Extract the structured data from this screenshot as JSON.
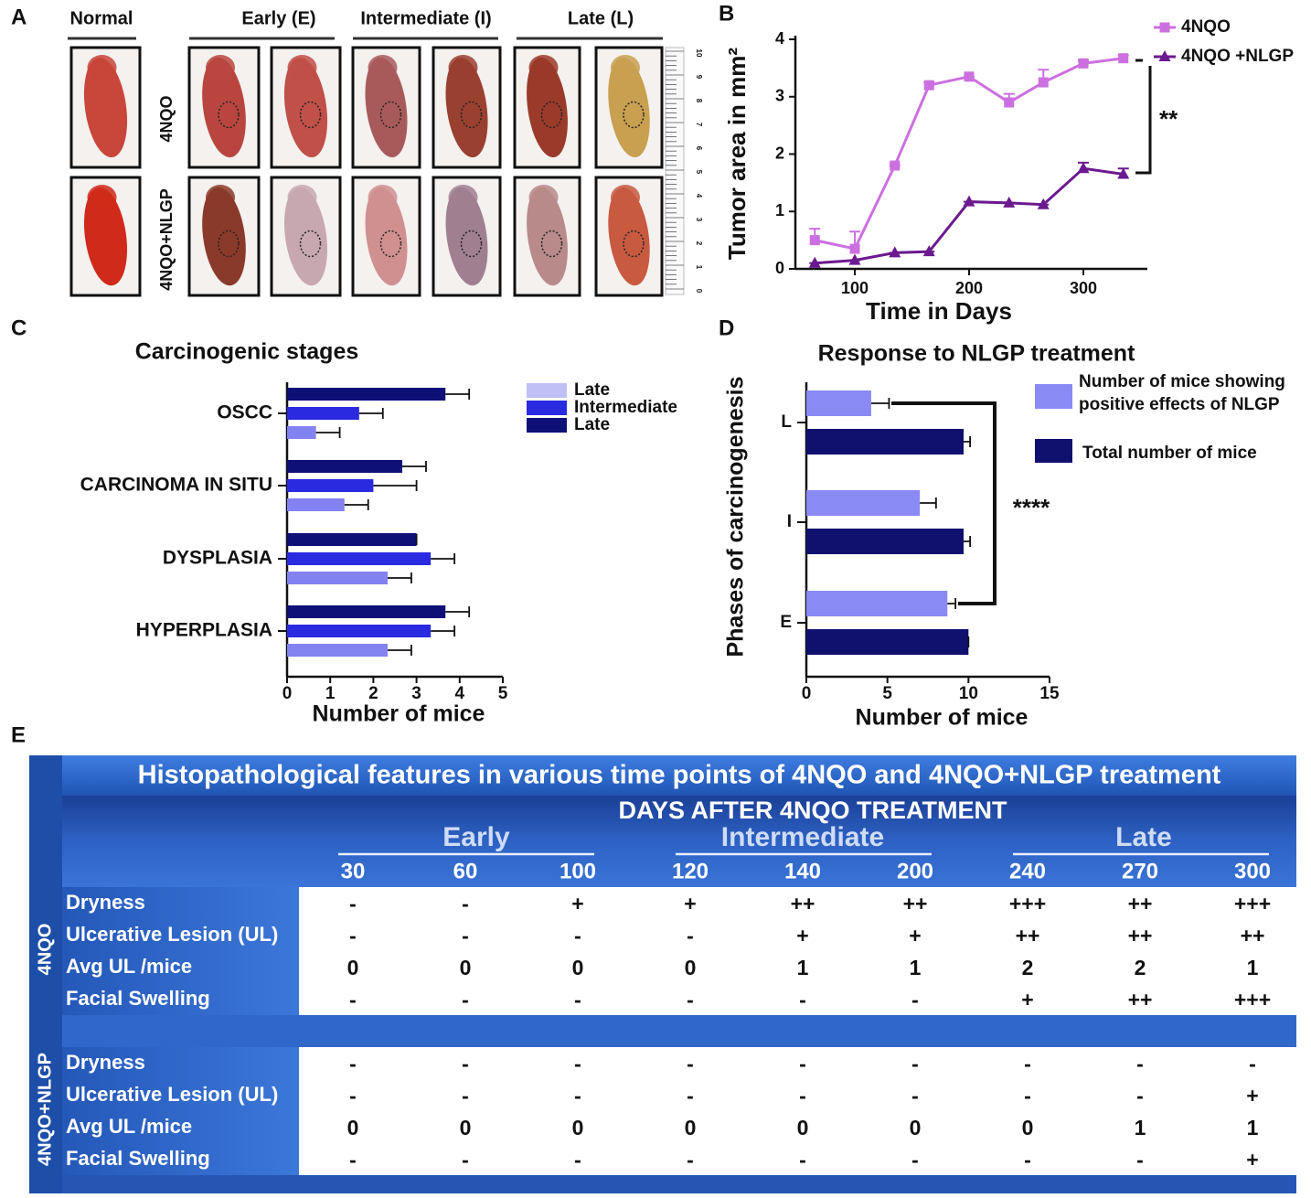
{
  "panel_labels": [
    "A",
    "B",
    "C",
    "D",
    "E"
  ],
  "photos": {
    "column_headers": [
      "Normal",
      "Early (E)",
      "Intermediate (I)",
      "Late (L)"
    ],
    "row_labels": [
      "4NQO",
      "4NQO+NLGP"
    ],
    "ruler_labels": [
      10,
      9,
      8,
      7,
      6,
      5,
      4,
      3,
      2,
      1,
      0
    ]
  },
  "chart_data": [
    {
      "type": "line",
      "x_label": "Time in Days",
      "y_label": "Tumor area in mm²",
      "x": [
        65,
        100,
        135,
        165,
        200,
        235,
        265,
        300,
        335
      ],
      "series": [
        {
          "name": "4NQO",
          "color": "#cc6fe0",
          "marker": "square",
          "values": [
            0.5,
            0.35,
            1.8,
            3.2,
            3.35,
            2.9,
            3.25,
            3.58,
            3.67
          ],
          "errors": [
            0.2,
            0.3,
            0,
            0.05,
            0,
            0.15,
            0.22,
            0.05,
            0.05
          ]
        },
        {
          "name": "4NQO +NLGP",
          "color": "#6b1a8f",
          "marker": "triangle",
          "values": [
            0.1,
            0.15,
            0.28,
            0.3,
            1.17,
            1.15,
            1.12,
            1.75,
            1.65
          ],
          "errors": [
            0,
            0,
            0,
            0,
            0,
            0,
            0,
            0.1,
            0.1
          ]
        }
      ],
      "xlim": [
        48,
        356
      ],
      "ylim": [
        0,
        4
      ],
      "xticks": [
        100,
        200,
        300
      ],
      "yticks": [
        0,
        1,
        2,
        3,
        4
      ],
      "annotation": "**"
    },
    {
      "type": "hbar",
      "title": "Carcinogenic stages",
      "x_label": "Number of mice",
      "categories": [
        "OSCC",
        "CARCINOMA IN SITU",
        "DYSPLASIA",
        "HYPERPLASIA"
      ],
      "series": [
        {
          "name": "Late",
          "color": "#8282f0",
          "values": [
            0.67,
            1.33,
            2.33,
            2.33
          ],
          "errors": [
            0.55,
            0.55,
            0.55,
            0.55
          ]
        },
        {
          "name": "Intermediate",
          "color": "#2a2ae0",
          "values": [
            1.67,
            2.0,
            3.33,
            3.33
          ],
          "errors": [
            0.55,
            1.0,
            0.55,
            0.55
          ]
        },
        {
          "name": "Late",
          "color": "#0f0f78",
          "values": [
            3.67,
            2.67,
            3.0,
            3.67
          ],
          "errors": [
            0.55,
            0.55,
            0,
            0.55
          ]
        }
      ],
      "xlim": [
        0,
        5
      ],
      "xticks": [
        0,
        1,
        2,
        3,
        4,
        5
      ]
    },
    {
      "type": "hbar",
      "title": "Response to NLGP treatment",
      "x_label": "Number of mice",
      "y_label": "Phases of carcinogenesis",
      "categories": [
        "L",
        "I",
        "E"
      ],
      "series": [
        {
          "name": "Number of mice showing positive effects of NLGP",
          "color": "#8a8af5",
          "values": [
            4,
            7,
            8.7
          ],
          "errors": [
            1.1,
            1.0,
            0.5
          ]
        },
        {
          "name": "Total number of mice",
          "color": "#10106e",
          "values": [
            9.7,
            9.7,
            10
          ],
          "errors": [
            0.4,
            0.4,
            0
          ]
        }
      ],
      "xlim": [
        0,
        15
      ],
      "xticks": [
        0,
        5,
        10,
        15
      ],
      "annotation": "****"
    }
  ],
  "table": {
    "title": "Histopathological features in various time points of 4NQO and 4NQO+NLGP treatment",
    "header": "DAYS AFTER 4NQO TREATMENT",
    "phases": [
      "Early",
      "Intermediate",
      "Late"
    ],
    "days": [
      30,
      60,
      100,
      120,
      140,
      200,
      240,
      270,
      300
    ],
    "groups": [
      {
        "name": "4NQO",
        "rows": [
          {
            "feature": "Dryness",
            "values": [
              "-",
              "-",
              "+",
              "+",
              "++",
              "++",
              "+++",
              "++",
              "+++"
            ]
          },
          {
            "feature": "Ulcerative Lesion (UL)",
            "values": [
              "-",
              "-",
              "-",
              "-",
              "+",
              "+",
              "++",
              "++",
              "++"
            ]
          },
          {
            "feature": "Avg UL /mice",
            "values": [
              0,
              0,
              0,
              0,
              1,
              1,
              2,
              2,
              1
            ]
          },
          {
            "feature": "Facial Swelling",
            "values": [
              "-",
              "-",
              "-",
              "-",
              "-",
              "-",
              "+",
              "++",
              "+++"
            ]
          }
        ]
      },
      {
        "name": "4NQO+NLGP",
        "rows": [
          {
            "feature": "Dryness",
            "values": [
              "-",
              "-",
              "-",
              "-",
              "-",
              "-",
              "-",
              "-",
              "-"
            ]
          },
          {
            "feature": "Ulcerative Lesion (UL)",
            "values": [
              "-",
              "-",
              "-",
              "-",
              "-",
              "-",
              "-",
              "-",
              "+"
            ]
          },
          {
            "feature": "Avg UL /mice",
            "values": [
              0,
              0,
              0,
              0,
              0,
              0,
              0,
              1,
              1
            ]
          },
          {
            "feature": "Facial Swelling",
            "values": [
              "-",
              "-",
              "-",
              "-",
              "-",
              "-",
              "-",
              "-",
              "+"
            ]
          }
        ]
      }
    ]
  }
}
